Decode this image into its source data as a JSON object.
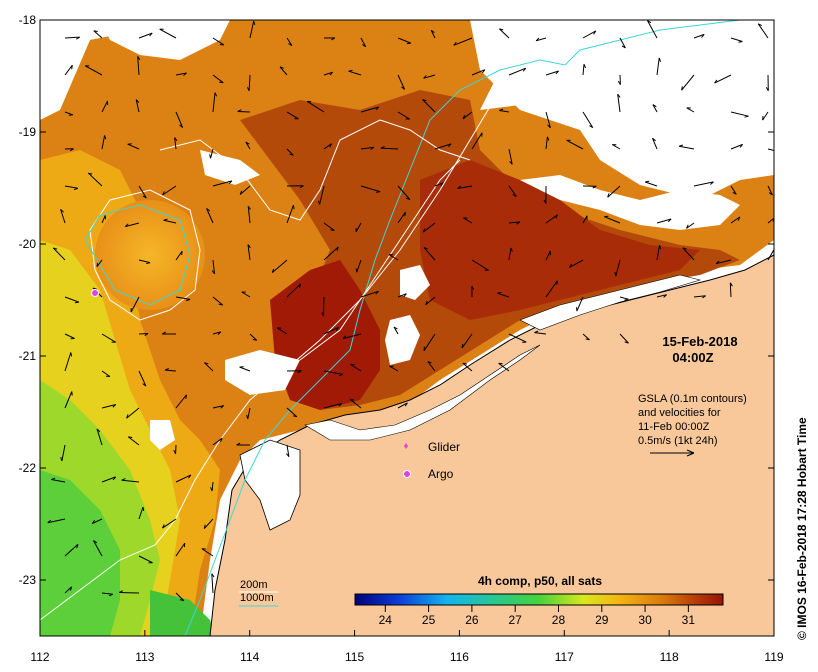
{
  "map": {
    "lon_ticks": [
      "112",
      "113",
      "114",
      "115",
      "116",
      "117",
      "118",
      "119"
    ],
    "lat_ticks": [
      "-18",
      "-19",
      "-20",
      "-21",
      "-22",
      "-23"
    ],
    "lon_range": [
      112,
      119
    ],
    "lat_range": [
      -23.5,
      -18
    ],
    "date": "15-Feb-2018",
    "time": "04:00Z",
    "legend_lines": [
      "GSLA (0.1m contours)",
      "and velocities for",
      "11-Feb 00:00Z",
      "0.5m/s (1kt 24h)"
    ],
    "glider_label": "Glider",
    "argo_label": "Argo",
    "contour_200": "200m",
    "contour_1000": "1000m",
    "colorbar_title": "4h comp, p50, all sats",
    "colorbar_ticks": [
      "24",
      "25",
      "26",
      "27",
      "28",
      "29",
      "30",
      "31"
    ],
    "colorbar_range": [
      23.3,
      31.8
    ],
    "credit": "© IMOS 16-Feb-2018 17:28 Hobart Time",
    "colors": {
      "land": "#f9c89a",
      "contour_1000": "#3cd6d8",
      "glider": "#e040e0",
      "argo": "#e040e0"
    }
  }
}
